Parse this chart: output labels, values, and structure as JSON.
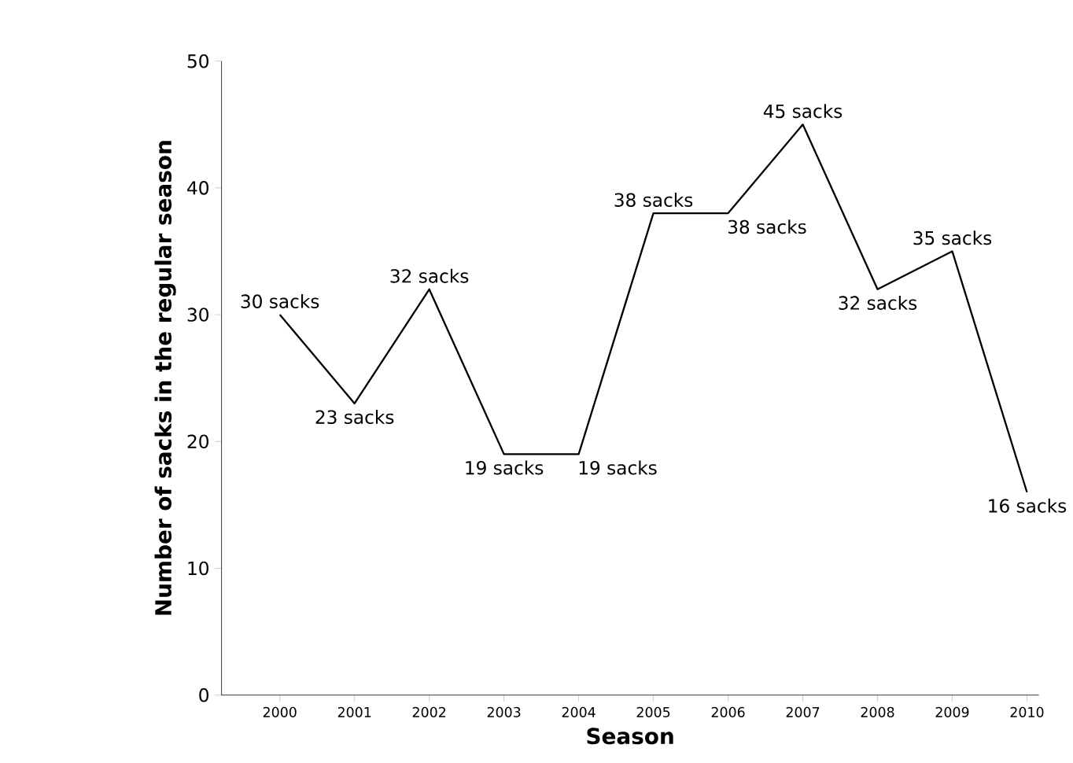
{
  "chart_data": {
    "type": "line",
    "xlabel": "Season",
    "ylabel": "Number of sacks in the regular season",
    "categories": [
      "2000",
      "2001",
      "2002",
      "2003",
      "2004",
      "2005",
      "2006",
      "2007",
      "2008",
      "2009",
      "2010"
    ],
    "values": [
      30,
      23,
      32,
      19,
      19,
      38,
      38,
      45,
      32,
      35,
      16
    ],
    "value_labels": [
      "30 sacks",
      "23 sacks",
      "32 sacks",
      "19 sacks",
      "19 sacks",
      "38 sacks",
      "38 sacks",
      "45 sacks",
      "32 sacks",
      "35 sacks",
      "16 sacks"
    ],
    "color": "#000000",
    "marker": "none",
    "line_style": "solid",
    "ylim": [
      0,
      50
    ],
    "yticks": [
      0,
      10,
      20,
      30,
      40,
      50
    ]
  }
}
